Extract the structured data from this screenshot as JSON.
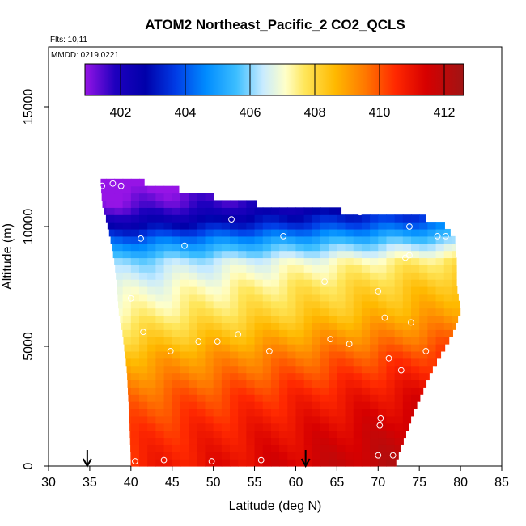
{
  "chart_data": {
    "type": "heatmap",
    "title": "ATOM2 Northeast_Pacific_2 CO2_QCLS",
    "flights_label": "Flts: 10,11",
    "mmdd_label": "MMDD: 0219,0221",
    "xlabel": "Latitude (deg N)",
    "ylabel": "Altitude (m)",
    "xlim": [
      30,
      85
    ],
    "ylim": [
      0,
      17500
    ],
    "x_ticks": [
      30,
      35,
      40,
      45,
      50,
      55,
      60,
      65,
      70,
      75,
      80,
      85
    ],
    "y_ticks": [
      0,
      5000,
      10000,
      15000
    ],
    "colorbar": {
      "min": 400.9,
      "max": 412.6,
      "ticks": [
        402,
        404,
        406,
        408,
        410,
        412
      ],
      "placement": "top-inside"
    },
    "curtain_bounds": [
      {
        "alt": 0,
        "lat_min": 40.0,
        "lat_max": 72.0
      },
      {
        "alt": 2000,
        "lat_min": 39.8,
        "lat_max": 74.0
      },
      {
        "alt": 4000,
        "lat_min": 39.5,
        "lat_max": 76.5
      },
      {
        "alt": 5500,
        "lat_min": 39.0,
        "lat_max": 79.0
      },
      {
        "alt": 6500,
        "lat_min": 38.5,
        "lat_max": 80.0
      },
      {
        "alt": 7500,
        "lat_min": 38.3,
        "lat_max": 79.5
      },
      {
        "alt": 8500,
        "lat_min": 38.0,
        "lat_max": 79.5
      },
      {
        "alt": 9500,
        "lat_min": 37.5,
        "lat_max": 79.3
      },
      {
        "alt": 10300,
        "lat_min": 37.0,
        "lat_max": 77.5
      },
      {
        "alt": 11000,
        "lat_min": 36.5,
        "lat_max": 53.5
      },
      {
        "alt": 12000,
        "lat_min": 36.3,
        "lat_max": 39.5
      }
    ],
    "profile": [
      {
        "alt": 0,
        "value": 411.3
      },
      {
        "alt": 1500,
        "value": 410.9
      },
      {
        "alt": 3000,
        "value": 410.3
      },
      {
        "alt": 4500,
        "value": 409.4
      },
      {
        "alt": 5500,
        "value": 408.6
      },
      {
        "alt": 6500,
        "value": 407.9
      },
      {
        "alt": 7500,
        "value": 407.4
      },
      {
        "alt": 8500,
        "value": 406.7
      },
      {
        "alt": 9300,
        "value": 405.2
      },
      {
        "alt": 10000,
        "value": 403.5
      },
      {
        "alt": 10800,
        "value": 402.0
      },
      {
        "alt": 11500,
        "value": 401.5
      },
      {
        "alt": 12000,
        "value": 401.0
      }
    ],
    "lat_gradient": 0.045,
    "observations": [
      [
        36.5,
        11700
      ],
      [
        37.8,
        11800
      ],
      [
        38.8,
        11700
      ],
      [
        41.2,
        9500
      ],
      [
        46.5,
        9200
      ],
      [
        52.2,
        10300
      ],
      [
        58.5,
        9600
      ],
      [
        67.8,
        10600
      ],
      [
        73.8,
        10000
      ],
      [
        77.2,
        9600
      ],
      [
        78.2,
        9600
      ],
      [
        73.3,
        8700
      ],
      [
        73.8,
        8800
      ],
      [
        40.0,
        7000
      ],
      [
        63.5,
        7700
      ],
      [
        70.0,
        7300
      ],
      [
        41.5,
        5600
      ],
      [
        70.8,
        6200
      ],
      [
        74.0,
        6000
      ],
      [
        44.8,
        4800
      ],
      [
        48.2,
        5200
      ],
      [
        50.5,
        5200
      ],
      [
        53.0,
        5500
      ],
      [
        56.8,
        4800
      ],
      [
        64.2,
        5300
      ],
      [
        66.5,
        5100
      ],
      [
        71.3,
        4500
      ],
      [
        72.8,
        4000
      ],
      [
        75.8,
        4800
      ],
      [
        70.2,
        1700
      ],
      [
        70.3,
        2000
      ],
      [
        40.5,
        200
      ],
      [
        44.0,
        250
      ],
      [
        49.8,
        200
      ],
      [
        55.8,
        250
      ],
      [
        70.0,
        450
      ],
      [
        71.8,
        450
      ]
    ],
    "flight_markers": [
      34.7,
      61.2
    ]
  }
}
